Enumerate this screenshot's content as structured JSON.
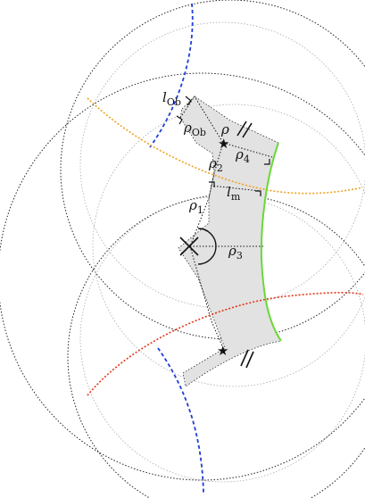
{
  "labels": {
    "l_o": {
      "main": "l",
      "sub": "Ob"
    },
    "rho_o": {
      "main": "ρ",
      "sub": "Ob"
    },
    "rho_small": {
      "main": "ρ",
      "sub": ""
    },
    "rho4": {
      "main": "ρ",
      "sub": "4"
    },
    "rho2": {
      "main": "ρ",
      "sub": "2"
    },
    "l_m": {
      "main": "l",
      "sub": "m"
    },
    "rho1": {
      "main": "ρ",
      "sub": "1"
    },
    "rho3": {
      "main": "ρ",
      "sub": "3"
    }
  },
  "colors": {
    "shaded_region": "#e2e2e2",
    "outline": "#111111",
    "big_circles": "#222222",
    "inner_circles": "#a8a8a8",
    "blue_geodesic": "#1f3fd6",
    "orange_geodesic": "#f0a020",
    "red_geodesic": "#e23418",
    "green_geodesic": "#6ad838"
  },
  "markers": {
    "star": "★",
    "cross": "✕"
  }
}
